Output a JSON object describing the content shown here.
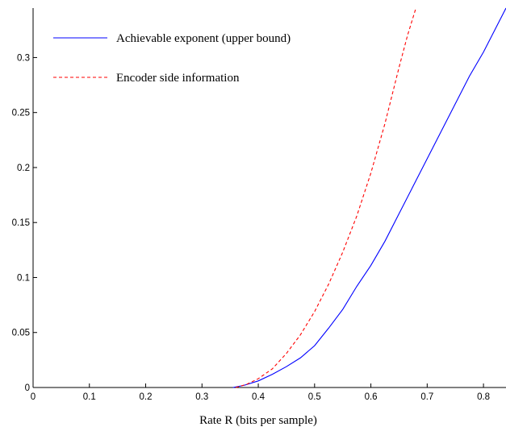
{
  "chart_data": {
    "type": "line",
    "title": "",
    "xlabel": "Rate R (bits per sample)",
    "ylabel": "",
    "xlim": [
      0,
      0.84
    ],
    "ylim": [
      0,
      0.345
    ],
    "xticks": [
      0,
      0.1,
      0.2,
      0.3,
      0.4,
      0.5,
      0.6,
      0.7,
      0.8
    ],
    "xtick_labels": [
      "0",
      "0.1",
      "0.2",
      "0.3",
      "0.4",
      "0.5",
      "0.6",
      "0.7",
      "0.8"
    ],
    "yticks": [
      0,
      0.05,
      0.1,
      0.15,
      0.2,
      0.25,
      0.3
    ],
    "ytick_labels": [
      "0",
      "0.05",
      "0.1",
      "0.15",
      "0.2",
      "0.25",
      "0.3"
    ],
    "grid": false,
    "legend": "top-left",
    "series": [
      {
        "name": "Achievable exponent (upper bound)",
        "color": "#0000ff",
        "style": "solid",
        "x": [
          0.355,
          0.375,
          0.4,
          0.425,
          0.45,
          0.475,
          0.5,
          0.525,
          0.55,
          0.575,
          0.6,
          0.625,
          0.65,
          0.675,
          0.7,
          0.725,
          0.75,
          0.775,
          0.8,
          0.825,
          0.84
        ],
        "y": [
          0.0,
          0.002,
          0.006,
          0.012,
          0.019,
          0.027,
          0.038,
          0.054,
          0.071,
          0.092,
          0.111,
          0.133,
          0.158,
          0.183,
          0.208,
          0.233,
          0.258,
          0.283,
          0.305,
          0.33,
          0.345
        ]
      },
      {
        "name": "Encoder side information",
        "color": "#ff0000",
        "style": "dashed",
        "x": [
          0.36,
          0.38,
          0.4,
          0.425,
          0.45,
          0.475,
          0.5,
          0.525,
          0.55,
          0.575,
          0.6,
          0.625,
          0.65,
          0.665,
          0.68
        ],
        "y": [
          0.0,
          0.003,
          0.008,
          0.017,
          0.031,
          0.048,
          0.069,
          0.094,
          0.123,
          0.156,
          0.195,
          0.24,
          0.291,
          0.32,
          0.345
        ]
      }
    ]
  }
}
